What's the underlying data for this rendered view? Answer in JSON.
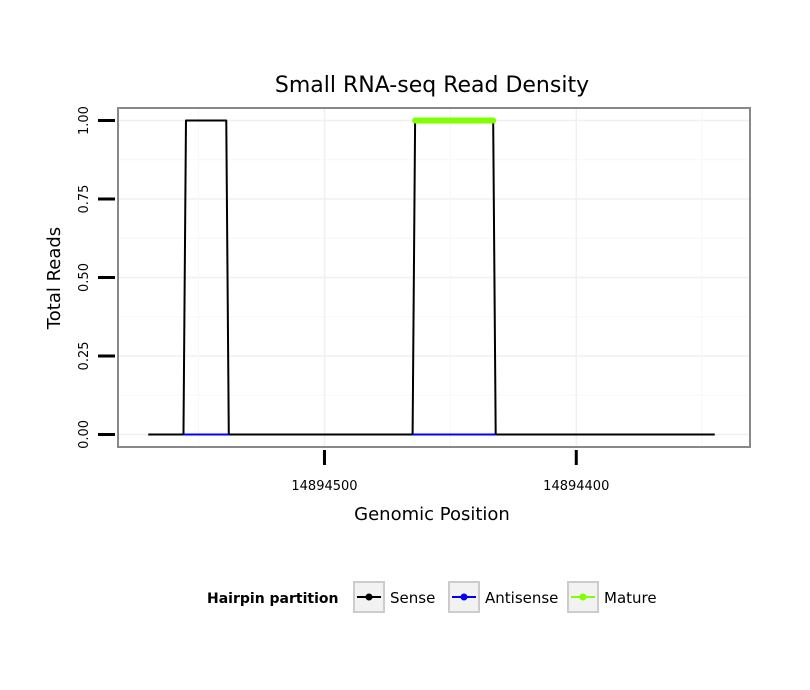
{
  "chart_data": {
    "type": "line",
    "title": "Small RNA-seq Read Density",
    "xlabel": "Genomic Position",
    "ylabel": "Total Reads",
    "xlim": [
      14894582,
      14894331
    ],
    "ylim": [
      -0.04,
      1.04
    ],
    "x_reversed": true,
    "x_ticks": [
      {
        "value": 14894500,
        "label": "14894500"
      },
      {
        "value": 14894400,
        "label": "14894400"
      }
    ],
    "y_ticks": [
      {
        "value": 0,
        "label": "0.00"
      },
      {
        "value": 0.25,
        "label": "0.25"
      },
      {
        "value": 0.5,
        "label": "0.50"
      },
      {
        "value": 0.75,
        "label": "0.75"
      },
      {
        "value": 1,
        "label": "1.00"
      }
    ],
    "grid": true,
    "series": [
      {
        "name": "Sense",
        "color": "#000000",
        "points": [
          [
            14894570,
            0
          ],
          [
            14894556,
            0
          ],
          [
            14894555,
            1
          ],
          [
            14894539,
            1
          ],
          [
            14894538,
            0
          ],
          [
            14894465,
            0
          ],
          [
            14894464,
            1
          ],
          [
            14894433,
            1
          ],
          [
            14894432,
            0
          ],
          [
            14894345,
            0
          ]
        ]
      },
      {
        "name": "Antisense",
        "color": "#0000ff",
        "points": [
          [
            14894556,
            0
          ],
          [
            14894538,
            0
          ],
          [
            14894465,
            0
          ],
          [
            14894432,
            0
          ]
        ],
        "segments": [
          [
            0,
            1
          ],
          [
            2,
            3
          ]
        ]
      },
      {
        "name": "Mature",
        "color": "#7fff00",
        "points": [
          [
            14894464,
            1
          ],
          [
            14894433,
            1
          ]
        ]
      }
    ],
    "legend": {
      "title": "Hairpin partition",
      "position": "bottom",
      "entries": [
        "Sense",
        "Antisense",
        "Mature"
      ]
    }
  }
}
